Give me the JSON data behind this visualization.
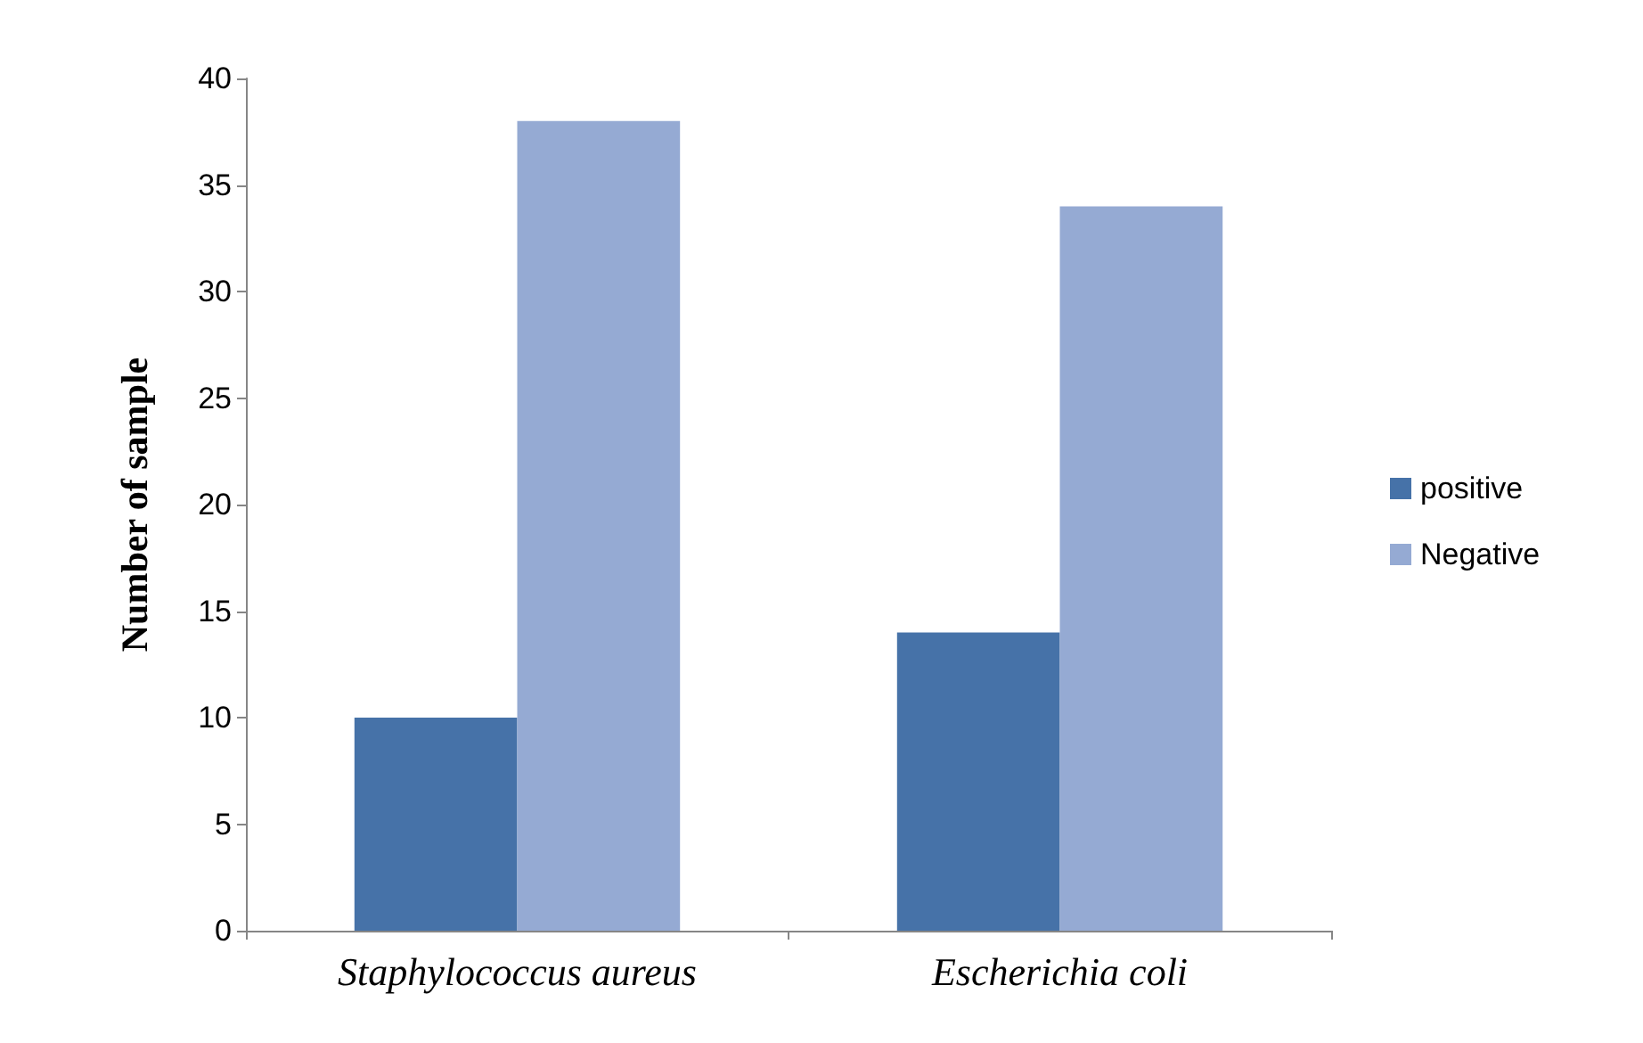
{
  "chart_data": {
    "type": "bar",
    "ylabel": "Number of sample",
    "categories": [
      "Staphylococcus aureus",
      "Escherichia coli"
    ],
    "series": [
      {
        "name": "positive",
        "color": "#4672a8",
        "values": [
          10,
          14
        ]
      },
      {
        "name": "Negative",
        "color": "#95aad3",
        "values": [
          38,
          34
        ]
      }
    ],
    "ylim": [
      0,
      40
    ],
    "yticks": [
      0,
      5,
      10,
      15,
      20,
      25,
      30,
      35,
      40
    ],
    "grid": false,
    "legend": "right"
  }
}
